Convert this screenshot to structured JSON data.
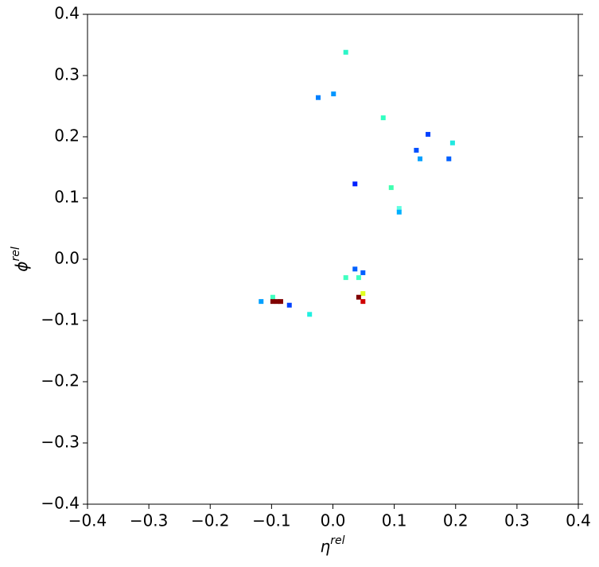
{
  "chart_data": {
    "type": "scatter",
    "xlabel": "η",
    "xlabel_sup": "rel",
    "ylabel": "ϕ",
    "ylabel_sup": "rel",
    "xlim": [
      -0.4,
      0.4
    ],
    "ylim": [
      -0.4,
      0.4
    ],
    "xticks": [
      {
        "value": -0.4,
        "label": "−0.4"
      },
      {
        "value": -0.3,
        "label": "−0.3"
      },
      {
        "value": -0.2,
        "label": "−0.2"
      },
      {
        "value": -0.1,
        "label": "−0.1"
      },
      {
        "value": 0,
        "label": "0.0"
      },
      0.1,
      0.2,
      0.3,
      0.4
    ],
    "yticks": [
      {
        "value": -0.4,
        "label": "−0.4"
      },
      {
        "value": -0.3,
        "label": "−0.3"
      },
      {
        "value": -0.2,
        "label": "−0.2"
      },
      {
        "value": -0.1,
        "label": "−0.1"
      },
      {
        "value": 0,
        "label": "0.0"
      },
      0.1,
      0.2,
      0.3,
      0.4
    ],
    "x": [
      0.021,
      -0.024,
      0.001,
      0.082,
      0.155,
      0.195,
      0.136,
      0.142,
      0.189,
      0.036,
      0.095,
      0.108,
      0.108,
      0.036,
      0.049,
      0.021,
      0.042,
      0.049,
      0.042,
      0.049,
      -0.117,
      -0.098,
      -0.098,
      -0.091,
      -0.085,
      -0.071,
      -0.038
    ],
    "y": [
      0.338,
      0.264,
      0.27,
      0.231,
      0.204,
      0.19,
      0.178,
      0.164,
      0.164,
      0.123,
      0.117,
      0.083,
      0.077,
      -0.016,
      -0.022,
      -0.03,
      -0.03,
      -0.056,
      -0.062,
      -0.069,
      -0.069,
      -0.062,
      -0.069,
      -0.069,
      -0.069,
      -0.075,
      -0.09
    ],
    "colors": [
      "#2cf5c8",
      "#0080ff",
      "#0096ff",
      "#30ffc0",
      "#0040ff",
      "#20e8e0",
      "#0050ff",
      "#00a0ff",
      "#0060ff",
      "#0020ff",
      "#40ffb0",
      "#60ffe0",
      "#00b0ff",
      "#0060ff",
      "#0060ff",
      "#40ffc0",
      "#40ffc0",
      "#e0ff20",
      "#800000",
      "#d00000",
      "#00a0ff",
      "#40ffc0",
      "#800000",
      "#800000",
      "#800000",
      "#0040ff",
      "#20f0e0"
    ]
  }
}
